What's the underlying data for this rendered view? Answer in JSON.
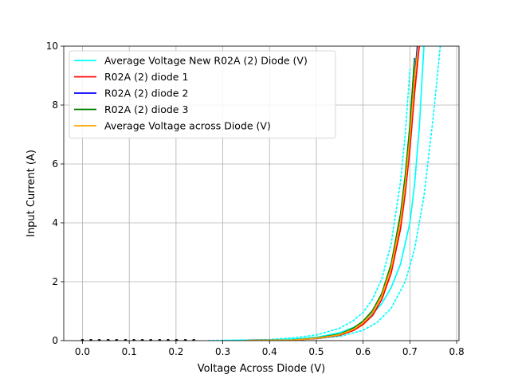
{
  "chart_data": {
    "type": "line",
    "title": "",
    "xlabel": "Voltage Across Diode (V)",
    "ylabel": "Input Current (A)",
    "xlim": [
      -0.04,
      0.805
    ],
    "ylim": [
      0,
      10
    ],
    "x_ticks": [
      0.0,
      0.1,
      0.2,
      0.3,
      0.4,
      0.5,
      0.6,
      0.7,
      0.8
    ],
    "x_tick_labels": [
      "0.0",
      "0.1",
      "0.2",
      "0.3",
      "0.4",
      "0.5",
      "0.6",
      "0.7",
      "0.8"
    ],
    "y_ticks": [
      0,
      2,
      4,
      6,
      8,
      10
    ],
    "y_tick_labels": [
      "0",
      "2",
      "4",
      "6",
      "8",
      "10"
    ],
    "grid": true,
    "legend_position": "top-left",
    "series": [
      {
        "name": "Average Voltage New R02A (2) Diode (V)",
        "color": "#00ffff",
        "style": "solid",
        "x": [
          0.3,
          0.4,
          0.45,
          0.5,
          0.55,
          0.58,
          0.6,
          0.62,
          0.64,
          0.66,
          0.68,
          0.7,
          0.71,
          0.72,
          0.73
        ],
        "y": [
          0.003,
          0.02,
          0.05,
          0.11,
          0.27,
          0.45,
          0.63,
          0.89,
          1.26,
          1.8,
          2.6,
          4.0,
          5.3,
          7.2,
          10.0
        ]
      },
      {
        "name": "",
        "color": "#00ffff",
        "style": "dotted",
        "x": [
          0.27,
          0.35,
          0.4,
          0.45,
          0.5,
          0.55,
          0.58,
          0.6,
          0.62,
          0.64,
          0.66,
          0.68,
          0.69,
          0.7
        ],
        "y": [
          0.003,
          0.02,
          0.04,
          0.09,
          0.19,
          0.42,
          0.69,
          0.96,
          1.4,
          2.1,
          3.3,
          5.4,
          7.0,
          9.2
        ]
      },
      {
        "name": "",
        "color": "#00ffff",
        "style": "dotted",
        "x": [
          0.33,
          0.4,
          0.45,
          0.5,
          0.55,
          0.6,
          0.63,
          0.66,
          0.69,
          0.71,
          0.73,
          0.75,
          0.765
        ],
        "y": [
          0.003,
          0.01,
          0.03,
          0.07,
          0.14,
          0.35,
          0.62,
          1.1,
          2.0,
          3.1,
          4.9,
          7.6,
          10.0
        ]
      },
      {
        "name": "R02A (2) diode 1",
        "color": "#ff0000",
        "style": "solid",
        "x": [
          0.35,
          0.45,
          0.5,
          0.55,
          0.58,
          0.6,
          0.62,
          0.64,
          0.66,
          0.68,
          0.69,
          0.7,
          0.71,
          0.72
        ],
        "y": [
          0.003,
          0.02,
          0.07,
          0.18,
          0.35,
          0.55,
          0.85,
          1.4,
          2.3,
          3.8,
          5.0,
          6.5,
          8.4,
          10.0
        ]
      },
      {
        "name": "R02A (2) diode 2",
        "color": "#0000ff",
        "style": "solid",
        "x": [
          0.35,
          0.45,
          0.5,
          0.55,
          0.58,
          0.6,
          0.62,
          0.64,
          0.66,
          0.68,
          0.69,
          0.7,
          0.71,
          0.716
        ],
        "y": [
          0.003,
          0.02,
          0.08,
          0.2,
          0.4,
          0.62,
          0.97,
          1.55,
          2.5,
          4.1,
          5.3,
          6.9,
          8.9,
          10.0
        ]
      },
      {
        "name": "R02A (2) diode 3",
        "color": "#008000",
        "style": "solid",
        "x": [
          0.35,
          0.45,
          0.5,
          0.55,
          0.58,
          0.6,
          0.62,
          0.64,
          0.66,
          0.68,
          0.69,
          0.7,
          0.71
        ],
        "y": [
          0.003,
          0.02,
          0.09,
          0.22,
          0.43,
          0.66,
          1.02,
          1.6,
          2.6,
          4.3,
          5.6,
          7.3,
          9.6
        ]
      },
      {
        "name": "Average Voltage across Diode (V)",
        "color": "#ffa500",
        "style": "solid",
        "x": [
          0.35,
          0.45,
          0.5,
          0.55,
          0.58,
          0.6,
          0.62,
          0.64,
          0.66,
          0.68,
          0.69,
          0.7,
          0.71,
          0.718
        ],
        "y": [
          0.003,
          0.02,
          0.08,
          0.2,
          0.39,
          0.61,
          0.95,
          1.52,
          2.47,
          4.07,
          5.3,
          6.9,
          8.9,
          10.0
        ]
      },
      {
        "name": "",
        "color": "#000000",
        "style": "markers",
        "x": [
          0.0,
          0.018,
          0.036,
          0.055,
          0.073,
          0.092,
          0.11,
          0.128,
          0.146,
          0.165,
          0.183,
          0.201,
          0.22,
          0.238
        ],
        "y": [
          0,
          0,
          0,
          0,
          0,
          0,
          0,
          0,
          0,
          0,
          0,
          0,
          0,
          0
        ]
      }
    ]
  }
}
